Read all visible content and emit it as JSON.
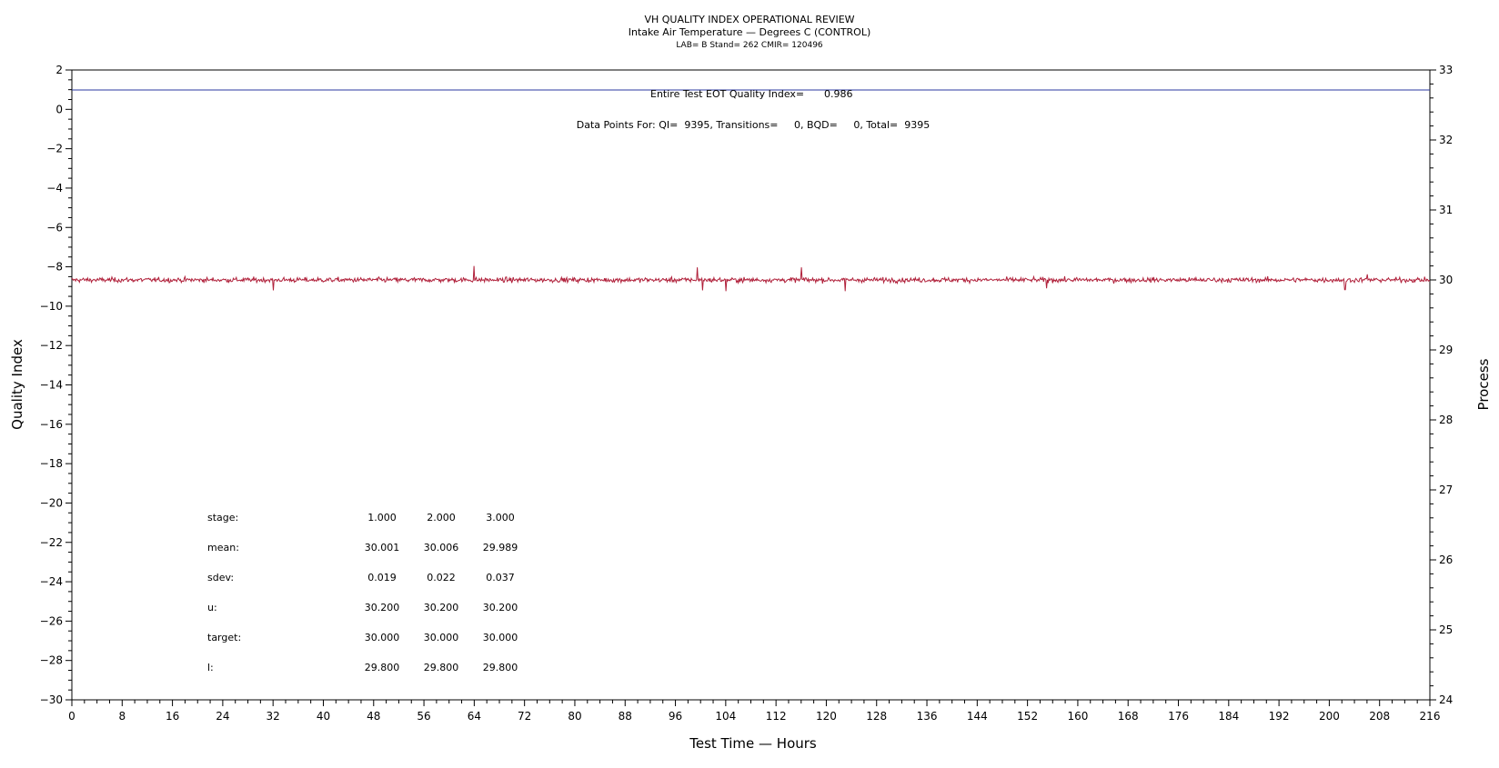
{
  "chart_data": {
    "type": "line",
    "title": "VH QUALITY INDEX OPERATIONAL REVIEW",
    "subtitle": "Intake Air Temperature — Degrees C (CONTROL)",
    "subtitle2": "LAB= B Stand= 262 CMIR= 120496",
    "xlabel": "Test Time — Hours",
    "ylabel": "Quality Index",
    "y2label": "Process",
    "xlim": [
      0,
      216
    ],
    "ylim": [
      -30,
      2
    ],
    "y2lim": [
      24,
      33
    ],
    "x_ticks": [
      "0",
      "8",
      "16",
      "24",
      "32",
      "40",
      "48",
      "56",
      "64",
      "72",
      "80",
      "88",
      "96",
      "104",
      "112",
      "120",
      "128",
      "136",
      "144",
      "152",
      "160",
      "168",
      "176",
      "184",
      "192",
      "200",
      "208",
      "216"
    ],
    "y_ticks": [
      "2",
      "0",
      "−2",
      "−4",
      "−6",
      "−8",
      "−10",
      "−12",
      "−14",
      "−16",
      "−18",
      "−20",
      "−22",
      "−24",
      "−26",
      "−28",
      "−30"
    ],
    "y2_ticks": [
      "33",
      "32",
      "31",
      "30",
      "29",
      "28",
      "27",
      "26",
      "25",
      "24"
    ],
    "qi_line": {
      "value": 0.986,
      "color": "#2b3aa0"
    },
    "process_series": {
      "color": "#b0203a",
      "x_start": 0,
      "x_end": 216,
      "mean": 30.0,
      "noise_sd": 0.03,
      "spikes": [
        {
          "x": 32,
          "y": 29.85
        },
        {
          "x": 64,
          "y": 30.2
        },
        {
          "x": 99.5,
          "y": 30.18
        },
        {
          "x": 100.3,
          "y": 29.85
        },
        {
          "x": 104,
          "y": 29.84
        },
        {
          "x": 116,
          "y": 30.18
        },
        {
          "x": 123,
          "y": 29.84
        },
        {
          "x": 155,
          "y": 29.88
        },
        {
          "x": 202.5,
          "y": 29.86
        },
        {
          "x": 206,
          "y": 30.08
        }
      ]
    },
    "annotations": {
      "qi_label": "Entire Test EOT Quality Index=",
      "qi_value": "0.986",
      "data_points": "Data Points For: QI=  9395, Transitions=     0, BQD=     0, Total=  9395"
    },
    "stats_table": {
      "rows": [
        {
          "label": "stage:",
          "values": [
            "1.000",
            "2.000",
            "3.000"
          ]
        },
        {
          "label": "mean:",
          "values": [
            "30.001",
            "30.006",
            "29.989"
          ]
        },
        {
          "label": "sdev:",
          "values": [
            "0.019",
            "0.022",
            "0.037"
          ]
        },
        {
          "label": "u:",
          "values": [
            "30.200",
            "30.200",
            "30.200"
          ]
        },
        {
          "label": "target:",
          "values": [
            "30.000",
            "30.000",
            "30.000"
          ]
        },
        {
          "label": "l:",
          "values": [
            "29.800",
            "29.800",
            "29.800"
          ]
        }
      ]
    }
  }
}
